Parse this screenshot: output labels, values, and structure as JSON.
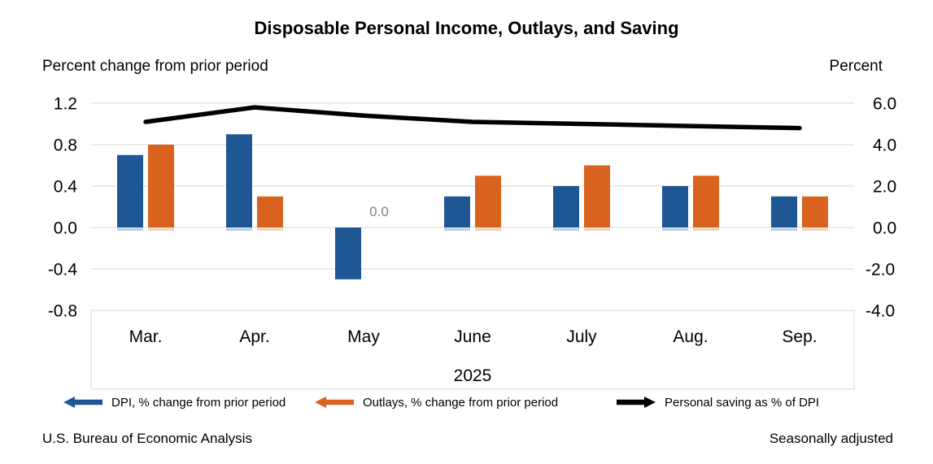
{
  "title": "Disposable Personal Income, Outlays, and Saving",
  "left_axis": {
    "unit_label": "Percent change from prior period",
    "ticks": [
      "1.2",
      "0.8",
      "0.4",
      "0.0",
      "-0.4",
      "-0.8"
    ]
  },
  "right_axis": {
    "unit_label": "Percent",
    "ticks": [
      "6.0",
      "4.0",
      "2.0",
      "0.0",
      "-2.0",
      "-4.0"
    ]
  },
  "chart_data": {
    "type": "bar+line",
    "categories": [
      "Mar.",
      "Apr.",
      "May",
      "June",
      "July",
      "Aug.",
      "Sep."
    ],
    "year_label": "2025",
    "left_ylim": [
      -0.8,
      1.2
    ],
    "right_ylim": [
      -4.0,
      6.0
    ],
    "grid": true,
    "series": [
      {
        "name": "DPI, % change from prior period",
        "type": "bar",
        "axis": "left",
        "color": "#1F5795",
        "edge_tint": "#A9C5E3",
        "values": [
          0.7,
          0.9,
          -0.5,
          0.3,
          0.4,
          0.4,
          0.3
        ]
      },
      {
        "name": "Outlays, % change from prior period",
        "type": "bar",
        "axis": "left",
        "color": "#D9631E",
        "edge_tint": "#F3C9A6",
        "values": [
          0.8,
          0.3,
          0.0,
          0.5,
          0.6,
          0.5,
          0.3
        ]
      },
      {
        "name": "Personal saving as % of DPI",
        "type": "line",
        "axis": "right",
        "color": "#000000",
        "values": [
          5.1,
          5.8,
          5.4,
          5.1,
          5.0,
          4.9,
          4.8
        ]
      }
    ],
    "annotations": [
      {
        "text": "0.0",
        "category": "May",
        "series": "Outlays, % change from prior period",
        "color": "#808080"
      }
    ]
  },
  "legend": {
    "items": [
      {
        "label": "DPI, % change from prior period",
        "marker": "arrow-left",
        "color": "#1F5795"
      },
      {
        "label": "Outlays, % change from prior period",
        "marker": "arrow-left",
        "color": "#D9631E"
      },
      {
        "label": "Personal saving as % of DPI",
        "marker": "arrow-right",
        "color": "#000000"
      }
    ]
  },
  "footer": {
    "source": "U.S. Bureau of Economic Analysis",
    "note": "Seasonally adjusted"
  },
  "colors": {
    "gridline": "#D9D9D9",
    "annotation_gray": "#808080"
  }
}
